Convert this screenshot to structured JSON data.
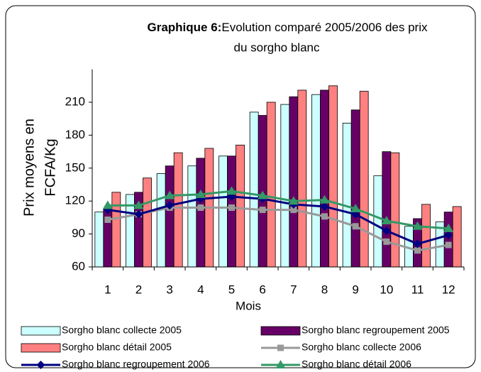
{
  "chart_data": {
    "type": "bar",
    "title_bold": "Graphique 6:",
    "title_lines": [
      "Evolution comparé 2005/2006 des prix",
      "du sorgho blanc"
    ],
    "y_label_lines": [
      "Prix moyens en",
      "FCFA/Kg"
    ],
    "x_label": "Mois",
    "categories": [
      "1",
      "2",
      "3",
      "4",
      "5",
      "6",
      "7",
      "8",
      "9",
      "10",
      "11",
      "12"
    ],
    "ylim": [
      60,
      240
    ],
    "yticks": [
      60,
      90,
      120,
      150,
      180,
      210
    ],
    "grid": false,
    "series": [
      {
        "name": "Sorgho blanc collecte 2005",
        "type": "bar",
        "color": "#ccffff",
        "values": [
          110,
          126,
          145,
          152,
          161,
          201,
          208,
          217,
          191,
          143,
          97,
          101
        ]
      },
      {
        "name": "Sorgho blanc regroupement 2005",
        "type": "bar",
        "color": "#660066",
        "values": [
          113,
          128,
          152,
          159,
          161,
          198,
          215,
          221,
          203,
          165,
          104,
          110
        ]
      },
      {
        "name": "Sorgho blanc détail 2005",
        "type": "bar",
        "color": "#ff8080",
        "values": [
          128,
          141,
          164,
          168,
          171,
          210,
          221,
          225,
          220,
          164,
          117,
          115
        ]
      },
      {
        "name": "Sorgho blanc collecte 2006",
        "type": "line",
        "marker": "square",
        "color": "#999999",
        "values": [
          103,
          108,
          114,
          114,
          114,
          112,
          112,
          106,
          97,
          83,
          75,
          80
        ]
      },
      {
        "name": "Sorgho blanc regroupement 2006",
        "type": "line",
        "marker": "diamond",
        "color": "#000080",
        "values": [
          112,
          108,
          116,
          122,
          124,
          122,
          117,
          115,
          108,
          93,
          81,
          89
        ]
      },
      {
        "name": "Sorgho blanc détail 2006",
        "type": "line",
        "marker": "triangle",
        "color": "#339966",
        "values": [
          116,
          116,
          125,
          126,
          129,
          125,
          120,
          121,
          113,
          102,
          97,
          95
        ]
      }
    ]
  }
}
